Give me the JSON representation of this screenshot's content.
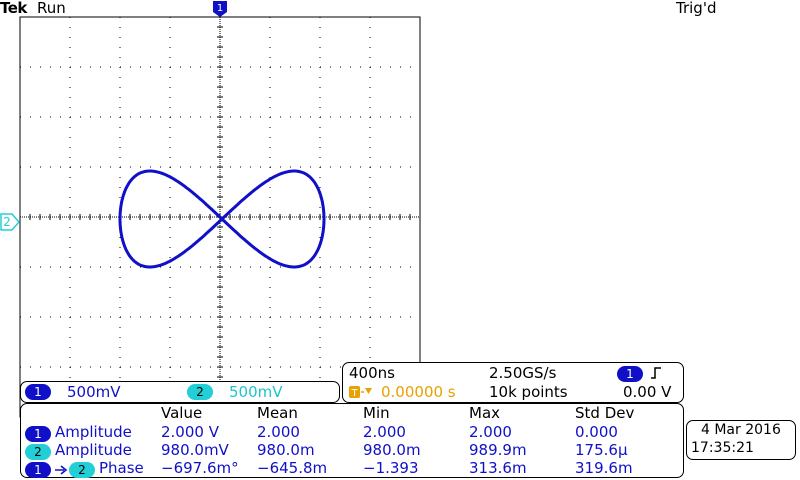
{
  "header": {
    "brand": "Tek",
    "status": "Run",
    "trigger_state": "Trig'd"
  },
  "markers": {
    "trigger_position": "1",
    "ch2_reference": "2"
  },
  "colors": {
    "ch1": "#1010c8",
    "ch2": "#22cfd6",
    "trigger": "#e8a100",
    "grid": "#000000"
  },
  "channels": [
    {
      "id": "1",
      "scale": "500mV"
    },
    {
      "id": "2",
      "scale": "500mV"
    }
  ],
  "timebase": {
    "time_per_div": "400ns",
    "sample_rate": "2.50GS/s",
    "trigger_offset": "0.00000 s",
    "record_length": "10k points",
    "trigger_source": "1",
    "trigger_level": "0.00 V",
    "trigger_slope_icon": "rising-edge-icon"
  },
  "measurements": {
    "headers": [
      "Value",
      "Mean",
      "Min",
      "Max",
      "Std Dev"
    ],
    "rows": [
      {
        "source": "1",
        "name": "Amplitude",
        "values": [
          "2.000 V",
          "2.000",
          "2.000",
          "2.000",
          "0.000"
        ]
      },
      {
        "source": "2",
        "name": "Amplitude",
        "values": [
          "980.0mV",
          "980.0m",
          "980.0m",
          "989.9m",
          "175.6µ"
        ]
      },
      {
        "source": "1",
        "source2": "2",
        "name": "Phase",
        "values": [
          "−697.6m°",
          "−645.8m",
          "−1.393",
          "313.6m",
          "319.6m"
        ]
      }
    ]
  },
  "datetime": {
    "date": "4 Mar 2016",
    "time": "17:35:21"
  }
}
